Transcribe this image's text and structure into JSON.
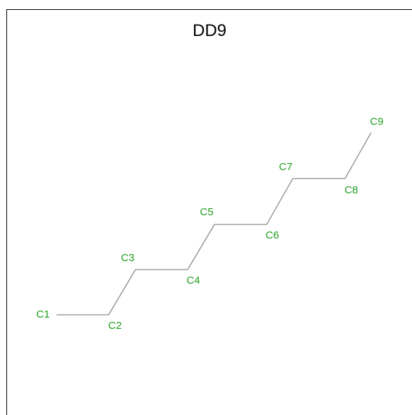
{
  "title": "DD9",
  "colors": {
    "atom_label": "#1f9e1f",
    "bond": "#8c8c8c",
    "frame": "#000000",
    "title": "#000000"
  },
  "atoms": [
    {
      "id": "c1",
      "label": "C1"
    },
    {
      "id": "c2",
      "label": "C2"
    },
    {
      "id": "c3",
      "label": "C3"
    },
    {
      "id": "c4",
      "label": "C4"
    },
    {
      "id": "c5",
      "label": "C5"
    },
    {
      "id": "c6",
      "label": "C6"
    },
    {
      "id": "c7",
      "label": "C7"
    },
    {
      "id": "c8",
      "label": "C8"
    },
    {
      "id": "c9",
      "label": "C9"
    }
  ],
  "bonds": [
    [
      "c1",
      "c2"
    ],
    [
      "c2",
      "c3"
    ],
    [
      "c3",
      "c4"
    ],
    [
      "c4",
      "c5"
    ],
    [
      "c5",
      "c6"
    ],
    [
      "c6",
      "c7"
    ],
    [
      "c7",
      "c8"
    ],
    [
      "c8",
      "c9"
    ]
  ]
}
